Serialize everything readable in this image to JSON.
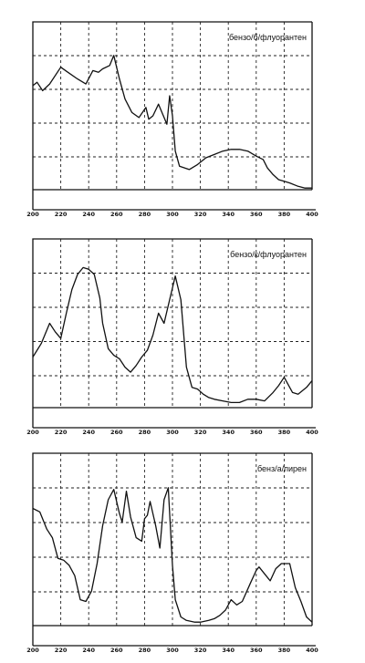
{
  "chart_data": [
    {
      "type": "line",
      "label": "бензо/б/флуорантен",
      "x_ticks": [
        "200",
        "220",
        "240",
        "260",
        "280",
        "300",
        "320",
        "340",
        "360",
        "380",
        "400"
      ],
      "xlim": [
        200,
        400
      ],
      "ylim": [
        0,
        10
      ],
      "grid": true,
      "series": [
        {
          "x": [
            200,
            203,
            207,
            212,
            220,
            225,
            232,
            238,
            243,
            247,
            250,
            255,
            258,
            262,
            266,
            271,
            276,
            281,
            283,
            286,
            290,
            293,
            296,
            298,
            300,
            302,
            305,
            312,
            318,
            324,
            330,
            336,
            342,
            348,
            354,
            360,
            365,
            368,
            372,
            376,
            380,
            384,
            390,
            395,
            400
          ],
          "y": [
            6.2,
            6.4,
            5.9,
            6.3,
            7.3,
            7.0,
            6.6,
            6.3,
            7.1,
            7.0,
            7.2,
            7.4,
            8.0,
            6.6,
            5.4,
            4.6,
            4.3,
            4.9,
            4.2,
            4.4,
            5.1,
            4.5,
            3.9,
            5.6,
            4.4,
            2.3,
            1.4,
            1.2,
            1.5,
            1.9,
            2.1,
            2.3,
            2.4,
            2.4,
            2.3,
            2.0,
            1.8,
            1.3,
            0.9,
            0.6,
            0.5,
            0.4,
            0.2,
            0.1,
            0.1
          ]
        }
      ]
    },
    {
      "type": "line",
      "label": "бензо/к/флуорантен",
      "x_ticks": [
        "200",
        "220",
        "240",
        "260",
        "280",
        "300",
        "320",
        "340",
        "360",
        "380",
        "400"
      ],
      "xlim": [
        200,
        400
      ],
      "ylim": [
        0,
        10
      ],
      "grid": true,
      "series": [
        {
          "x": [
            200,
            206,
            212,
            216,
            220,
            224,
            228,
            232,
            236,
            240,
            244,
            248,
            250,
            254,
            258,
            262,
            266,
            270,
            274,
            278,
            282,
            286,
            290,
            294,
            298,
            302,
            306,
            310,
            314,
            318,
            322,
            326,
            330,
            336,
            342,
            348,
            354,
            360,
            366,
            372,
            376,
            380,
            386,
            390,
            396,
            400
          ],
          "y": [
            3.0,
            3.8,
            5.0,
            4.5,
            4.1,
            5.6,
            7.0,
            7.9,
            8.3,
            8.2,
            7.9,
            6.5,
            5.0,
            3.5,
            3.1,
            2.9,
            2.4,
            2.1,
            2.5,
            3.0,
            3.4,
            4.3,
            5.6,
            5.0,
            6.4,
            7.8,
            6.4,
            2.4,
            1.2,
            1.1,
            0.8,
            0.6,
            0.5,
            0.4,
            0.3,
            0.3,
            0.5,
            0.5,
            0.4,
            0.9,
            1.3,
            1.8,
            0.9,
            0.8,
            1.2,
            1.6
          ]
        }
      ]
    },
    {
      "type": "line",
      "label": "бенз/а/пирен",
      "x_ticks": [
        "200",
        "220",
        "240",
        "260",
        "280",
        "300",
        "320",
        "340",
        "360",
        "380",
        "400"
      ],
      "xlim": [
        200,
        400
      ],
      "ylim": [
        0,
        10
      ],
      "grid": true,
      "series": [
        {
          "x": [
            200,
            205,
            210,
            214,
            218,
            222,
            226,
            230,
            234,
            238,
            242,
            246,
            250,
            254,
            258,
            262,
            264,
            267,
            270,
            274,
            278,
            280,
            282,
            284,
            288,
            291,
            294,
            297,
            300,
            302,
            306,
            310,
            316,
            320,
            326,
            330,
            334,
            338,
            342,
            346,
            350,
            356,
            360,
            362,
            366,
            370,
            374,
            378,
            380,
            384,
            388,
            392,
            396,
            400
          ],
          "y": [
            6.8,
            6.6,
            5.6,
            5.1,
            3.9,
            3.8,
            3.5,
            2.9,
            1.5,
            1.4,
            2.0,
            3.6,
            5.8,
            7.3,
            7.9,
            6.5,
            6.0,
            7.8,
            6.3,
            5.1,
            4.9,
            6.2,
            6.4,
            7.2,
            5.8,
            4.5,
            7.3,
            8.0,
            3.5,
            1.5,
            0.5,
            0.3,
            0.2,
            0.2,
            0.3,
            0.4,
            0.6,
            0.9,
            1.5,
            1.2,
            1.4,
            2.5,
            3.2,
            3.4,
            3.0,
            2.6,
            3.3,
            3.6,
            3.6,
            3.6,
            2.2,
            1.4,
            0.5,
            0.2
          ]
        }
      ]
    }
  ]
}
